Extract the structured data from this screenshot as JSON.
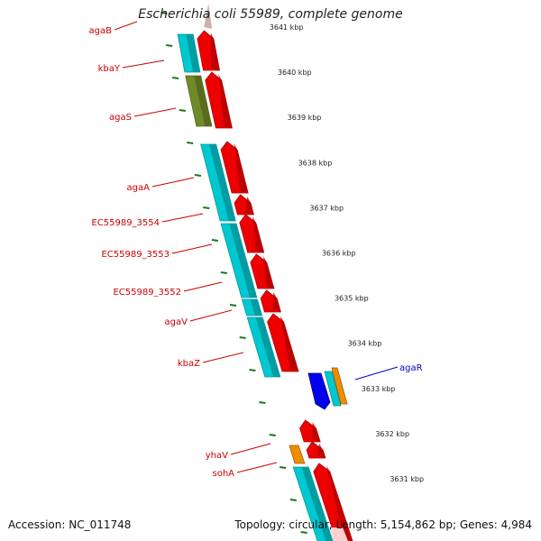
{
  "title": "Escherichia coli 55989, complete genome",
  "footer": {
    "accession": "Accession: NC_011748",
    "summary": "Topology: circular; Length: 5,154,862 bp; Genes: 4,984"
  },
  "colors": {
    "label_red": "#cc0000",
    "label_blue": "#0000cc",
    "cds_red": "#ee0000",
    "cds_cyan": "#00c8d0",
    "cds_olive": "#6f8a28",
    "cds_orange": "#f08c00",
    "cds_blue": "#0000ee",
    "backbone": "#8c8c8c",
    "tick_green": "#1a7a1a"
  },
  "scale_ticks": [
    "3641 kbp",
    "3640 kbp",
    "3639 kbp",
    "3638 kbp",
    "3637 kbp",
    "3636 kbp",
    "3635 kbp",
    "3634 kbp",
    "3633 kbp",
    "3632 kbp",
    "3631 kbp"
  ],
  "gene_labels": [
    {
      "name": "agaB",
      "color": "red"
    },
    {
      "name": "kbaY",
      "color": "red"
    },
    {
      "name": "agaS",
      "color": "red"
    },
    {
      "name": "agaA",
      "color": "red"
    },
    {
      "name": "EC55989_3554",
      "color": "red"
    },
    {
      "name": "EC55989_3553",
      "color": "red"
    },
    {
      "name": "EC55989_3552",
      "color": "red"
    },
    {
      "name": "agaV",
      "color": "red"
    },
    {
      "name": "kbaZ",
      "color": "red"
    },
    {
      "name": "agaR",
      "color": "blue"
    },
    {
      "name": "yhaV",
      "color": "red"
    },
    {
      "name": "sohA",
      "color": "red"
    }
  ]
}
